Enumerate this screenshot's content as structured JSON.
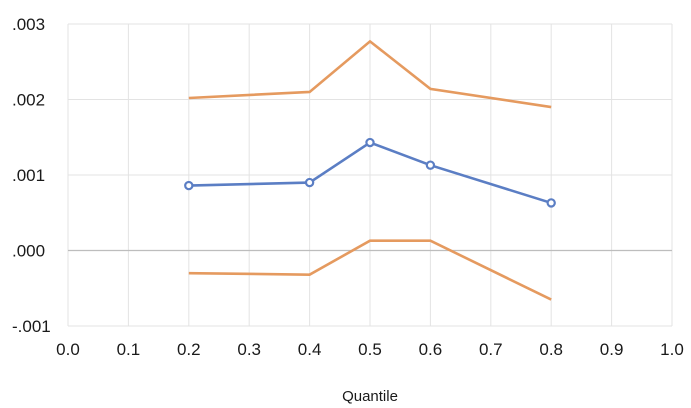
{
  "chart_data": {
    "type": "line",
    "xlabel": "Quantile",
    "ylabel": "",
    "xlim": [
      0.0,
      1.0
    ],
    "ylim": [
      -0.001,
      0.003
    ],
    "x_ticks": [
      "0.0",
      "0.1",
      "0.2",
      "0.3",
      "0.4",
      "0.5",
      "0.6",
      "0.7",
      "0.8",
      "0.9",
      "1.0"
    ],
    "y_ticks": [
      ".003",
      ".002",
      ".001",
      ".000",
      "-.001"
    ],
    "grid": true,
    "legend": "none",
    "x": [
      0.2,
      0.4,
      0.5,
      0.6,
      0.8
    ],
    "series": [
      {
        "values": [
          0.00202,
          0.0021,
          0.00277,
          0.00214,
          0.0019
        ],
        "color": "#e59a5f",
        "markers": false
      },
      {
        "values": [
          0.00086,
          0.0009,
          0.00143,
          0.00113,
          0.00063
        ],
        "color": "#5b7ec4",
        "markers": true
      },
      {
        "values": [
          -0.0003,
          -0.00032,
          0.00013,
          0.00013,
          -0.00065
        ],
        "color": "#e59a5f",
        "markers": false
      }
    ]
  }
}
